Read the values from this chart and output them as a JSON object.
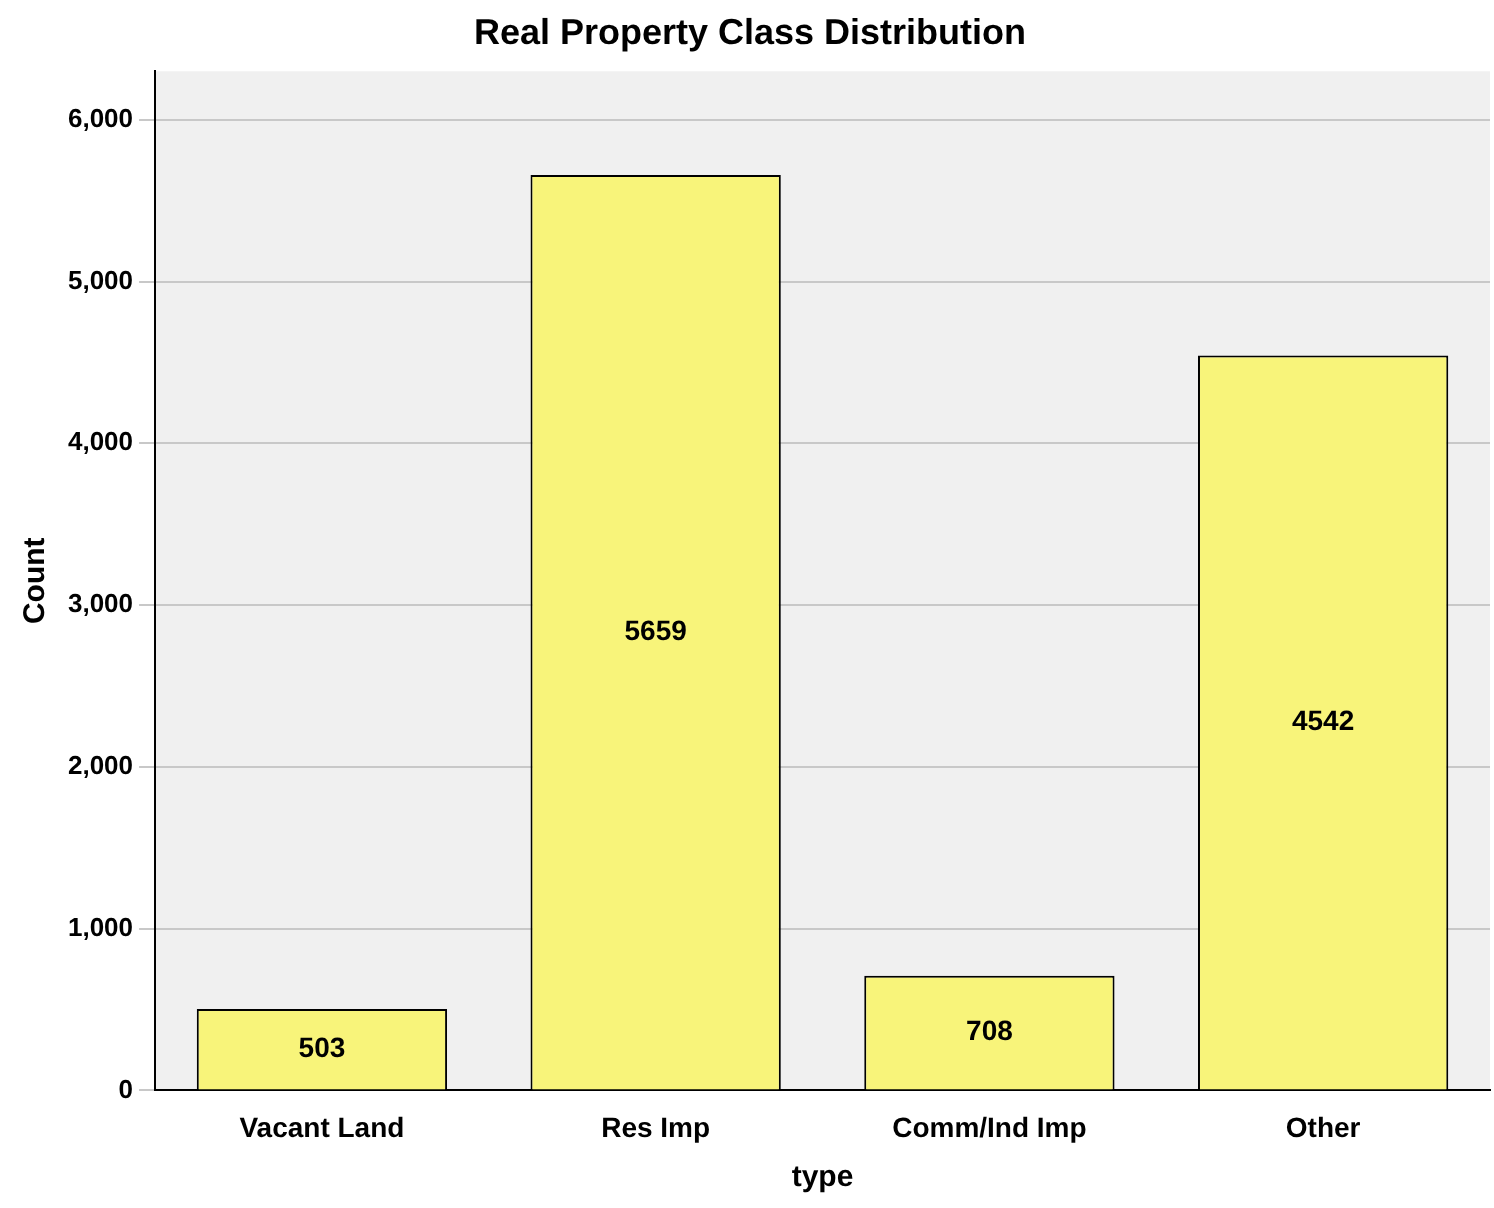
{
  "chart_data": {
    "type": "bar",
    "title": "Real Property Class Distribution",
    "xlabel": "type",
    "ylabel": "Count",
    "categories": [
      "Vacant Land",
      "Res Imp",
      "Comm/Ind Imp",
      "Other"
    ],
    "values": [
      503,
      5659,
      708,
      4542
    ],
    "color": "#f8f47a",
    "ylim": [
      0,
      6300
    ],
    "yticks": [
      {
        "value": 0,
        "label": "0"
      },
      {
        "value": 1000,
        "label": "1,000"
      },
      {
        "value": 2000,
        "label": "2,000"
      },
      {
        "value": 3000,
        "label": "3,000"
      },
      {
        "value": 4000,
        "label": "4,000"
      },
      {
        "value": 5000,
        "label": "5,000"
      },
      {
        "value": 6000,
        "label": "6,000"
      }
    ],
    "grid": "y",
    "legend": false,
    "data_labels": true
  }
}
